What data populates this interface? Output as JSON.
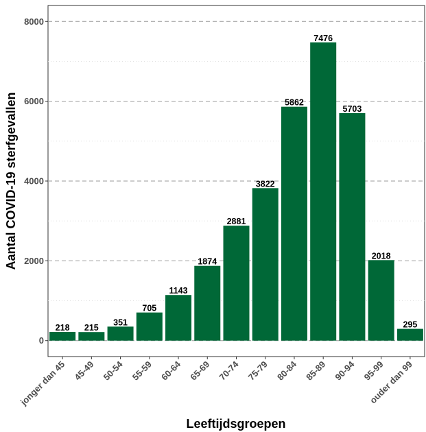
{
  "chart_data": {
    "type": "bar",
    "title": "",
    "xlabel": "Leeftijdsgroepen",
    "ylabel": "Aantal COVID-19 sterfgevallen",
    "categories": [
      "jonger dan 45",
      "45-49",
      "50-54",
      "55-59",
      "60-64",
      "65-69",
      "70-74",
      "75-79",
      "80-84",
      "85-89",
      "90-94",
      "95-99",
      "ouder dan 99"
    ],
    "values": [
      218,
      215,
      351,
      705,
      1143,
      1874,
      2881,
      3822,
      5862,
      7476,
      5703,
      2018,
      295
    ],
    "ylim": [
      -400,
      8400
    ],
    "yticks": [
      0,
      2000,
      4000,
      6000,
      8000
    ],
    "grid": true,
    "grid_style": "dashed major, dotted minor",
    "legend": "none",
    "bar_color": "#006837"
  }
}
